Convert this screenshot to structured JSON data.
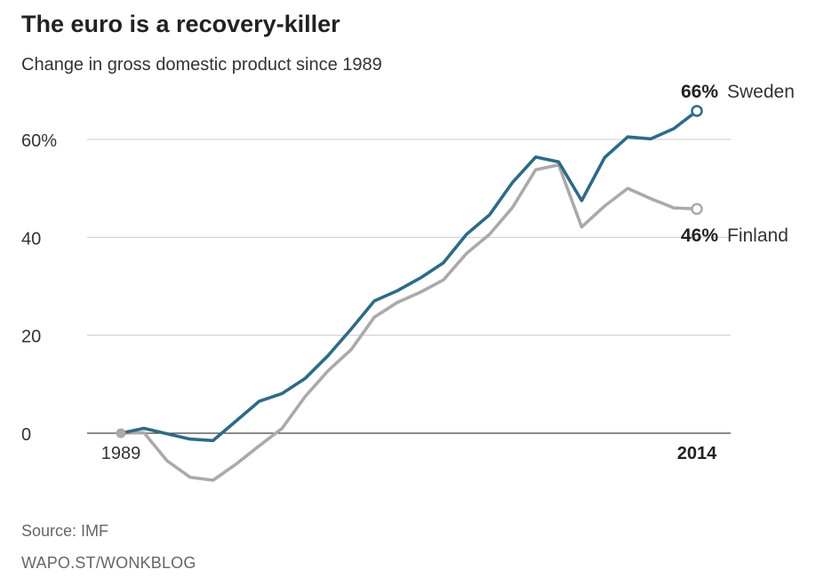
{
  "header": {
    "title": "The euro is a recovery-killer",
    "subtitle": "Change in gross domestic product since 1989"
  },
  "footer": {
    "source": "Source: IMF",
    "credit": "WAPO.ST/WONKBLOG"
  },
  "chart_data": {
    "type": "line",
    "x": [
      1989,
      1990,
      1991,
      1992,
      1993,
      1994,
      1995,
      1996,
      1997,
      1998,
      1999,
      2000,
      2001,
      2002,
      2003,
      2004,
      2005,
      2006,
      2007,
      2008,
      2009,
      2010,
      2011,
      2012,
      2013,
      2014
    ],
    "series": [
      {
        "name": "Sweden",
        "color": "#2e6a88",
        "values": [
          0,
          1,
          -0.1,
          -1.2,
          -1.5,
          2.5,
          6.5,
          8.1,
          11.2,
          15.9,
          21.3,
          27,
          29.1,
          31.7,
          34.8,
          40.6,
          44.6,
          51.2,
          56.4,
          55.4,
          47.5,
          56.3,
          60.5,
          60.1,
          62.2,
          65.8
        ],
        "end_label": "66%"
      },
      {
        "name": "Finland",
        "color": "#aaaaaa",
        "values": [
          0,
          0.1,
          -5.6,
          -9,
          -9.6,
          -6.3,
          -2.6,
          1,
          7.5,
          12.8,
          17.1,
          23.7,
          26.7,
          28.8,
          31.3,
          36.7,
          40.6,
          46.1,
          53.8,
          54.8,
          42.1,
          46.4,
          50,
          47.9,
          46,
          45.8
        ],
        "end_label": "46%"
      }
    ],
    "title": "The euro is a recovery-killer",
    "subtitle": "Change in gross domestic product since 1989",
    "ylim": [
      -12,
      72
    ],
    "y_ticks": [
      {
        "value": 0,
        "label": "0"
      },
      {
        "value": 20,
        "label": "20"
      },
      {
        "value": 40,
        "label": "40"
      },
      {
        "value": 60,
        "label": "60%"
      }
    ],
    "x_tick_labels": [
      {
        "value": 1989,
        "label": "1989",
        "bold": false
      },
      {
        "value": 2014,
        "label": "2014",
        "bold": true
      }
    ],
    "grid": true,
    "legend": "direct labels at line ends"
  }
}
